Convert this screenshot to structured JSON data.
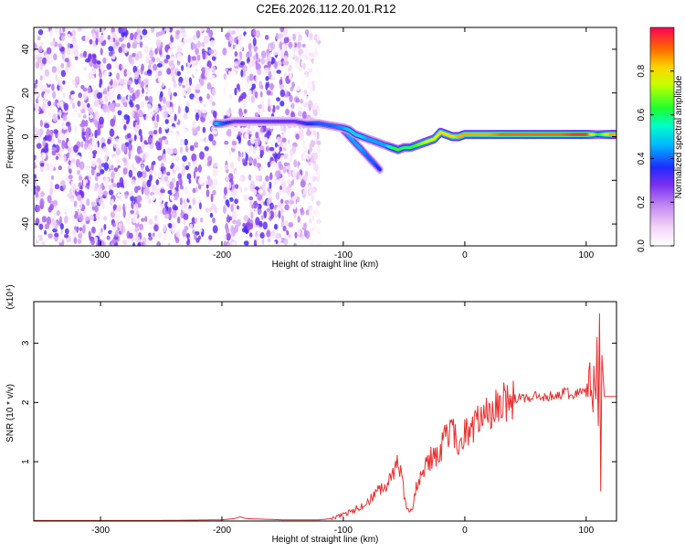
{
  "title": "C2E6.2026.112.20.01.R12",
  "chart_data": [
    {
      "type": "heatmap",
      "xlabel": "Height of straight line (km)",
      "ylabel": "Frequency (Hz)",
      "xlim": [
        -355,
        125
      ],
      "ylim": [
        -50,
        50
      ],
      "xticks": [
        -300,
        -200,
        -100,
        0,
        100
      ],
      "yticks": [
        -40,
        -20,
        0,
        20,
        40
      ],
      "colorbar": {
        "label": "Normalized spectral amplitude",
        "range": [
          0,
          1
        ],
        "ticks": [
          "0.0",
          "0.2",
          "0.4",
          "0.6",
          "0.8"
        ]
      },
      "noise_region_x": [
        -355,
        -120
      ],
      "noise_gap_x": [
        -205,
        -198
      ],
      "signal_track": {
        "x": [
          -205,
          -200,
          -190,
          -180,
          -170,
          -160,
          -150,
          -140,
          -130,
          -120,
          -110,
          -100,
          -95,
          -90,
          -85,
          -80,
          -75,
          -70,
          -65,
          -60,
          -55,
          -50,
          -45,
          -40,
          -35,
          -30,
          -25,
          -20,
          -15,
          -10,
          -5,
          0,
          10,
          20,
          30,
          40,
          50,
          60,
          70,
          80,
          90,
          100,
          110,
          120,
          125
        ],
        "frequency": [
          6,
          6,
          7,
          7,
          7,
          7,
          7,
          7,
          6,
          6,
          5,
          4,
          3,
          1,
          0,
          -1,
          -2,
          -3,
          -4,
          -5,
          -6,
          -5,
          -5,
          -4,
          -3,
          -2,
          -1,
          2,
          1,
          0,
          0,
          1,
          1,
          1,
          1,
          1,
          1,
          1,
          1,
          1,
          1,
          1,
          1,
          1,
          1
        ],
        "amplitude": [
          0.5,
          0.4,
          0.3,
          0.3,
          0.3,
          0.3,
          0.3,
          0.3,
          0.35,
          0.4,
          0.4,
          0.45,
          0.5,
          0.5,
          0.5,
          0.45,
          0.45,
          0.45,
          0.45,
          0.6,
          0.65,
          0.6,
          0.6,
          0.65,
          0.7,
          0.75,
          0.75,
          0.8,
          0.8,
          0.8,
          0.85,
          0.85,
          0.85,
          0.85,
          0.9,
          0.9,
          0.9,
          0.9,
          0.9,
          0.9,
          0.95,
          0.95,
          0.6,
          0.85,
          0.85
        ]
      },
      "signal_branch": {
        "x": [
          -100,
          -95,
          -90,
          -85,
          -80,
          -75,
          -70
        ],
        "frequency": [
          3,
          0,
          -3,
          -6,
          -9,
          -12,
          -15
        ],
        "amplitude": [
          0.45,
          0.45,
          0.45,
          0.45,
          0.4,
          0.4,
          0.35
        ]
      }
    },
    {
      "type": "line",
      "xlabel": "Height of straight line (km)",
      "ylabel": "SNR (10 * v/v)",
      "y_multiplier": "(x10⁴)",
      "xlim": [
        -355,
        125
      ],
      "ylim": [
        0,
        3.7
      ],
      "xticks": [
        -300,
        -200,
        -100,
        0,
        100
      ],
      "yticks": [
        1,
        2,
        3
      ],
      "color": "#e8302e",
      "x": [
        -355,
        -300,
        -250,
        -200,
        -190,
        -185,
        -180,
        -150,
        -120,
        -110,
        -100,
        -90,
        -80,
        -70,
        -65,
        -60,
        -57,
        -55,
        -52,
        -50,
        -48,
        -45,
        -42,
        -40,
        -35,
        -30,
        -25,
        -20,
        -15,
        -10,
        -5,
        0,
        5,
        10,
        20,
        30,
        40,
        50,
        60,
        70,
        80,
        90,
        95,
        100,
        103,
        105,
        107,
        108,
        109,
        110,
        111,
        112,
        113,
        115,
        120,
        125
      ],
      "y": [
        0.01,
        0.01,
        0.01,
        0.02,
        0.04,
        0.07,
        0.04,
        0.02,
        0.02,
        0.04,
        0.1,
        0.2,
        0.3,
        0.55,
        0.6,
        0.7,
        0.9,
        1.0,
        0.8,
        0.45,
        0.2,
        0.15,
        0.3,
        0.6,
        0.8,
        1.05,
        1.05,
        1.2,
        1.45,
        1.6,
        1.2,
        1.45,
        1.55,
        1.65,
        1.85,
        2.0,
        2.05,
        2.1,
        2.1,
        2.12,
        2.15,
        2.15,
        2.18,
        2.2,
        2.3,
        1.8,
        2.6,
        2.2,
        3.1,
        1.6,
        3.5,
        0.5,
        2.8,
        2.1,
        2.1,
        2.1
      ]
    }
  ]
}
